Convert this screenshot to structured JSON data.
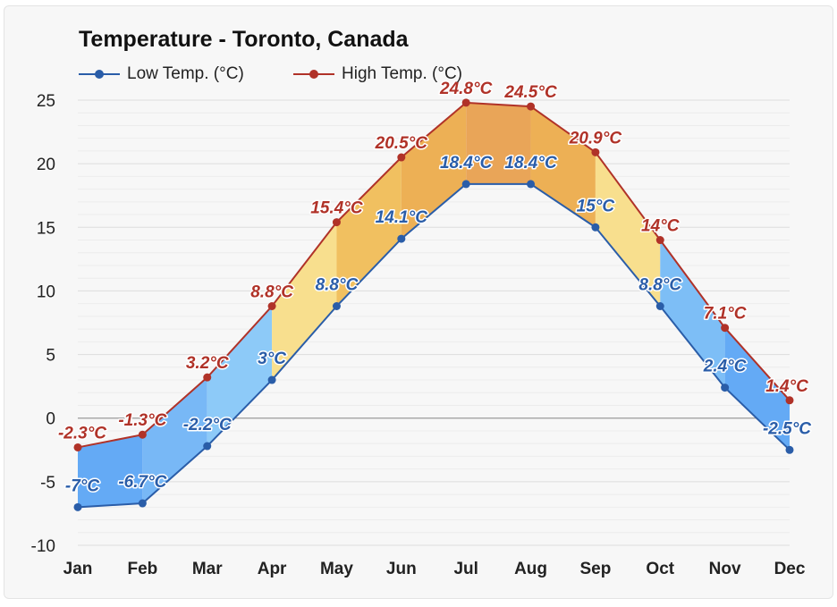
{
  "chart_data": {
    "type": "line",
    "title": "Temperature - Toronto, Canada",
    "categories": [
      "Jan",
      "Feb",
      "Mar",
      "Apr",
      "May",
      "Jun",
      "Jul",
      "Aug",
      "Sep",
      "Oct",
      "Nov",
      "Dec"
    ],
    "series": [
      {
        "name": "Low Temp. (°C)",
        "values": [
          -7,
          -6.7,
          -2.2,
          3,
          8.8,
          14.1,
          18.4,
          18.4,
          15,
          8.8,
          2.4,
          -2.5
        ],
        "labels": [
          "-7°C",
          "-6.7°C",
          "-2.2°C",
          "3°C",
          "8.8°C",
          "14.1°C",
          "18.4°C",
          "18.4°C",
          "15°C",
          "8.8°C",
          "2.4°C",
          "-2.5°C"
        ],
        "color": "#2a5da8"
      },
      {
        "name": "High Temp. (°C)",
        "values": [
          -2.3,
          -1.3,
          3.2,
          8.8,
          15.4,
          20.5,
          24.8,
          24.5,
          20.9,
          14,
          7.1,
          1.4
        ],
        "labels": [
          "-2.3°C",
          "-1.3°C",
          "3.2°C",
          "8.8°C",
          "15.4°C",
          "20.5°C",
          "24.8°C",
          "24.5°C",
          "20.9°C",
          "14°C",
          "7.1°C",
          "1.4°C"
        ],
        "color": "#b03228"
      }
    ],
    "yticks": [
      -10,
      -5,
      0,
      5,
      10,
      15,
      20,
      25
    ],
    "ylim": [
      -10,
      25
    ],
    "grid": true,
    "legend_position": "top-left",
    "band_colors": [
      "#64aaf5",
      "#78b8f6",
      "#8dcaf8",
      "#f8df8e",
      "#f1c060",
      "#edb055",
      "#e9a558",
      "#edb055",
      "#f8df8e",
      "#7dbef6",
      "#64aaf5",
      "#58a3f3"
    ],
    "label_outline_color": "#ffffff"
  }
}
